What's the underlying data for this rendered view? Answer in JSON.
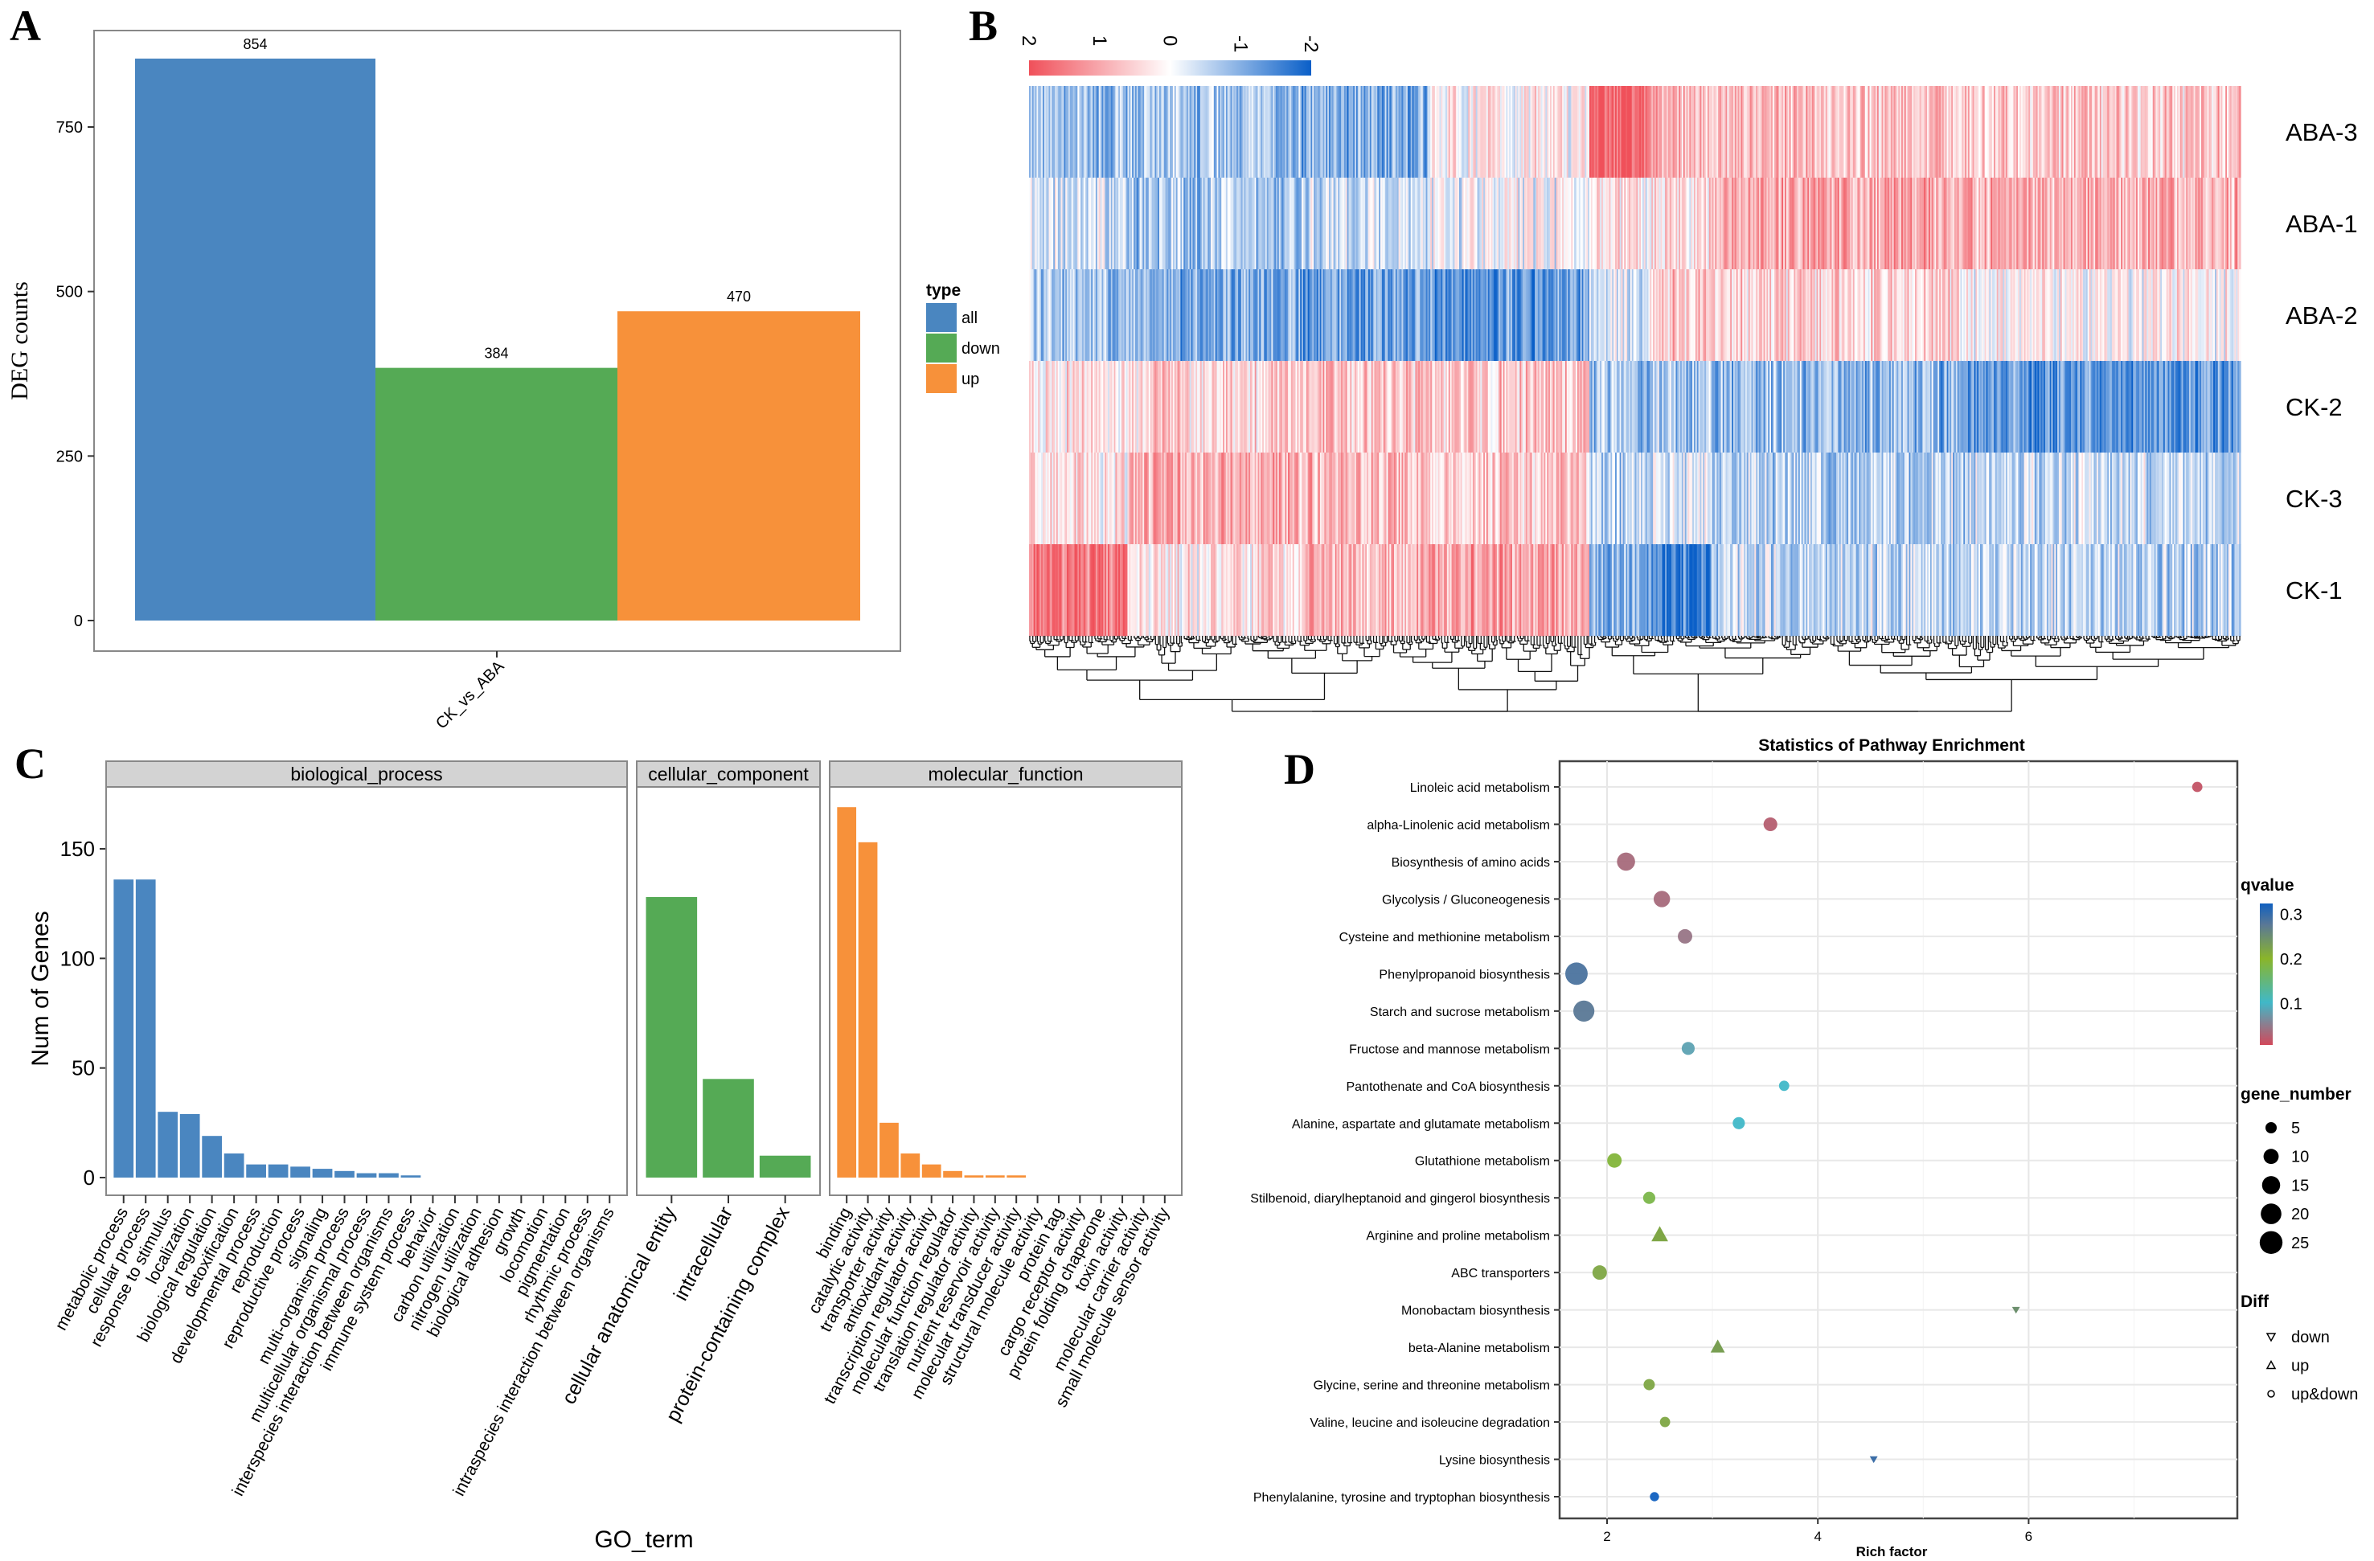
{
  "chart_data": [
    {
      "panel": "A",
      "type": "bar",
      "categories": [
        "CK_vs_ABA"
      ],
      "series": [
        {
          "name": "all",
          "values": [
            854
          ],
          "color": "#4a86c0"
        },
        {
          "name": "down",
          "values": [
            384
          ],
          "color": "#55aa55"
        },
        {
          "name": "up",
          "values": [
            470
          ],
          "color": "#f7913a"
        }
      ],
      "ylabel": "DEG counts",
      "yticks": [
        0,
        250,
        500,
        750
      ],
      "ylim": [
        0,
        900
      ],
      "legend_title": "type",
      "legend_position": "right"
    },
    {
      "panel": "B",
      "type": "heatmap",
      "rows": [
        "ABA-3",
        "ABA-1",
        "ABA-2",
        "CK-2",
        "CK-3",
        "CK-1"
      ],
      "colorbar_ticks": [
        "2",
        "1",
        "0",
        "-1",
        "-2"
      ],
      "scale": [
        -2,
        2
      ],
      "high_color": "#f0505a",
      "low_color": "#0a5fc8",
      "column_count": 800,
      "cluster_blocks": [
        {
          "cols": [
            0,
            65
          ],
          "means": [
            -0.8,
            -0.3,
            -0.7,
            0.3,
            0.3,
            1.5
          ]
        },
        {
          "cols": [
            65,
            180
          ],
          "means": [
            -0.7,
            -0.7,
            -1.0,
            0.5,
            0.9,
            0.3
          ]
        },
        {
          "cols": [
            180,
            265
          ],
          "means": [
            -1.0,
            -0.4,
            -1.2,
            0.7,
            0.8,
            0.8
          ]
        },
        {
          "cols": [
            265,
            370
          ],
          "means": [
            0.1,
            -0.1,
            -1.3,
            0.6,
            0.6,
            1.0
          ]
        },
        {
          "cols": [
            370,
            410
          ],
          "means": [
            1.7,
            0.3,
            -0.3,
            -0.8,
            -0.7,
            -0.9
          ]
        },
        {
          "cols": [
            410,
            450
          ],
          "means": [
            0.8,
            0.3,
            0.6,
            -0.7,
            -0.3,
            -1.5
          ]
        },
        {
          "cols": [
            450,
            620
          ],
          "means": [
            0.7,
            1.0,
            0.5,
            -0.9,
            -0.6,
            -0.5
          ]
        },
        {
          "cols": [
            620,
            800
          ],
          "means": [
            0.6,
            0.9,
            0.1,
            -1.3,
            -0.4,
            -0.5
          ]
        }
      ],
      "dendrogram": "column clustering"
    },
    {
      "panel": "C",
      "type": "bar",
      "xlabel": "GO_term",
      "ylabel": "Num of Genes",
      "yticks": [
        0,
        50,
        100,
        150
      ],
      "ylim": [
        0,
        175
      ],
      "facets": [
        {
          "name": "biological_process",
          "color": "#4a86c0",
          "categories": [
            "metabolic process",
            "cellular process",
            "response to stimulus",
            "localization",
            "biological regulation",
            "detoxification",
            "developmental process",
            "reproduction",
            "reproductive process",
            "signaling",
            "multi-organism process",
            "multicellular organismal process",
            "interspecies interaction between organisms",
            "immune system process",
            "behavior",
            "carbon utilization",
            "nitrogen utilization",
            "biological adhesion",
            "growth",
            "locomotion",
            "pigmentation",
            "rhythmic process",
            "intraspecies interaction between organisms"
          ],
          "values": [
            136,
            136,
            30,
            29,
            19,
            11,
            6,
            6,
            5,
            4,
            3,
            2,
            2,
            1,
            0,
            0,
            0,
            0,
            0,
            0,
            0,
            0,
            0
          ]
        },
        {
          "name": "cellular_component",
          "color": "#55aa55",
          "categories": [
            "cellular anatomical entity",
            "intracellular",
            "protein-containing complex"
          ],
          "values": [
            128,
            45,
            10
          ]
        },
        {
          "name": "molecular_function",
          "color": "#f7913a",
          "categories": [
            "binding",
            "catalytic activity",
            "transporter activity",
            "antioxidant activity",
            "transcription regulator activity",
            "molecular function regulator",
            "translation regulator activity",
            "nutrient reservoir activity",
            "molecular transducer activity",
            "structural molecule activity",
            "protein tag",
            "cargo receptor activity",
            "protein folding chaperone",
            "toxin activity",
            "molecular carrier activity",
            "small molecule sensor activity"
          ],
          "values": [
            169,
            153,
            25,
            11,
            6,
            3,
            1,
            1,
            1,
            0,
            0,
            0,
            0,
            0,
            0,
            0
          ]
        }
      ]
    },
    {
      "panel": "D",
      "type": "scatter",
      "title": "Statistics of Pathway Enrichment",
      "xlabel": "Rich factor",
      "xticks": [
        2,
        4,
        6
      ],
      "xlim": [
        1.55,
        7.98
      ],
      "points": [
        {
          "pathway": "Linoleic acid metabolism",
          "rich": 7.6,
          "q": 0.01,
          "n": 4,
          "diff": "up&down"
        },
        {
          "pathway": "alpha-Linolenic acid metabolism",
          "rich": 3.55,
          "q": 0.02,
          "n": 8,
          "diff": "up&down"
        },
        {
          "pathway": "Biosynthesis of amino acids",
          "rich": 2.18,
          "q": 0.03,
          "n": 15,
          "diff": "up&down"
        },
        {
          "pathway": "Glycolysis / Gluconeogenesis",
          "rich": 2.52,
          "q": 0.03,
          "n": 12,
          "diff": "up&down"
        },
        {
          "pathway": "Cysteine and methionine metabolism",
          "rich": 2.74,
          "q": 0.04,
          "n": 9,
          "diff": "up&down"
        },
        {
          "pathway": "Phenylpropanoid biosynthesis",
          "rich": 1.71,
          "q": 0.29,
          "n": 24,
          "diff": "up&down"
        },
        {
          "pathway": "Starch and sucrose metabolism",
          "rich": 1.78,
          "q": 0.28,
          "n": 21,
          "diff": "up&down"
        },
        {
          "pathway": "Fructose and mannose metabolism",
          "rich": 2.77,
          "q": 0.08,
          "n": 7,
          "diff": "up&down"
        },
        {
          "pathway": "Pantothenate and CoA biosynthesis",
          "rich": 3.68,
          "q": 0.1,
          "n": 4,
          "diff": "up&down"
        },
        {
          "pathway": "Alanine, aspartate and glutamate metabolism",
          "rich": 3.25,
          "q": 0.1,
          "n": 6,
          "diff": "up&down"
        },
        {
          "pathway": "Glutathione metabolism",
          "rich": 2.07,
          "q": 0.19,
          "n": 9,
          "diff": "up&down"
        },
        {
          "pathway": "Stilbenoid, diarylheptanoid and gingerol biosynthesis",
          "rich": 2.4,
          "q": 0.18,
          "n": 6,
          "diff": "up&down"
        },
        {
          "pathway": "Arginine and proline metabolism",
          "rich": 2.5,
          "q": 0.22,
          "n": 10,
          "diff": "up"
        },
        {
          "pathway": "ABC transporters",
          "rich": 1.93,
          "q": 0.22,
          "n": 9,
          "diff": "up&down"
        },
        {
          "pathway": "Monobactam biosynthesis",
          "rich": 5.88,
          "q": 0.25,
          "n": 1,
          "diff": "down"
        },
        {
          "pathway": "beta-Alanine metabolism",
          "rich": 3.05,
          "q": 0.23,
          "n": 7,
          "diff": "up"
        },
        {
          "pathway": "Glycine, serine and threonine metabolism",
          "rich": 2.4,
          "q": 0.22,
          "n": 5,
          "diff": "up&down"
        },
        {
          "pathway": "Valine, leucine and isoleucine degradation",
          "rich": 2.55,
          "q": 0.22,
          "n": 4,
          "diff": "up&down"
        },
        {
          "pathway": "Lysine biosynthesis",
          "rich": 4.53,
          "q": 0.3,
          "n": 1,
          "diff": "down"
        },
        {
          "pathway": "Phenylalanine, tyrosine and tryptophan biosynthesis",
          "rich": 2.45,
          "q": 0.33,
          "n": 3,
          "diff": "up&down"
        }
      ],
      "legend": {
        "qvalue_title": "qvalue",
        "qvalue_ticks": [
          "0.3",
          "0.2",
          "0.1"
        ],
        "qvalue_tick_values": [
          0.3,
          0.2,
          0.1
        ],
        "gene_title": "gene_number",
        "gene_sizes": [
          "5",
          "10",
          "15",
          "20",
          "25"
        ],
        "diff_title": "Diff",
        "diff_items": [
          "down",
          "up",
          "up&down"
        ]
      }
    }
  ],
  "panel_labels": [
    "A",
    "B",
    "C",
    "D"
  ]
}
